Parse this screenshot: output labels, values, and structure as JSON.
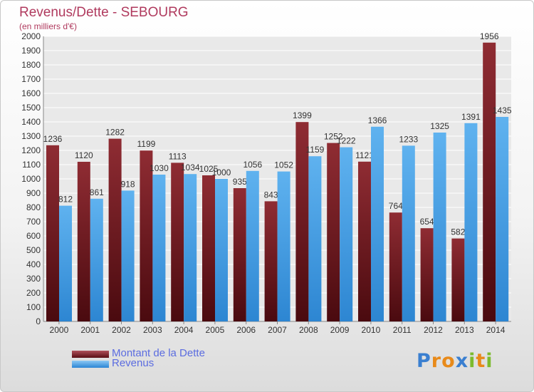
{
  "header": {
    "title": "Revenus/Dette - SEBOURG",
    "subtitle": "(en milliers d'€)"
  },
  "chart_data": {
    "type": "bar",
    "categories": [
      "2000",
      "2001",
      "2002",
      "2003",
      "2004",
      "2005",
      "2006",
      "2007",
      "2008",
      "2009",
      "2010",
      "2011",
      "2012",
      "2013",
      "2014"
    ],
    "series": [
      {
        "name": "Montant de la Dette",
        "color": "#7a1c22",
        "values": [
          1236,
          1120,
          1282,
          1199,
          1113,
          1025,
          935,
          843,
          1399,
          1252,
          1121,
          764,
          654,
          582,
          1956
        ]
      },
      {
        "name": "Revenus",
        "color": "#3d9ce6",
        "values": [
          812,
          861,
          918,
          1030,
          1034,
          1000,
          1056,
          1052,
          1159,
          1222,
          1366,
          1233,
          1325,
          1391,
          1435
        ]
      }
    ],
    "ylim": [
      0,
      2000
    ],
    "yticks": [
      0,
      100,
      200,
      300,
      400,
      500,
      600,
      700,
      800,
      900,
      1000,
      1100,
      1200,
      1300,
      1400,
      1500,
      1600,
      1700,
      1800,
      1900,
      2000
    ],
    "grid": true,
    "legend_position": "bottom-left"
  },
  "legend": [
    {
      "label": "Montant de la Dette",
      "color": "#7a1c22"
    },
    {
      "label": "Revenus",
      "color": "#3d9ce6"
    }
  ],
  "logo": {
    "letters": [
      "P",
      "r",
      "o",
      "x",
      "i",
      "t",
      "i"
    ],
    "colors": [
      "#3a7fd0",
      "#e88a1a",
      "#e88a1a",
      "#3a7fd0",
      "#7cbb2e",
      "#e88a1a",
      "#7cbb2e"
    ]
  }
}
